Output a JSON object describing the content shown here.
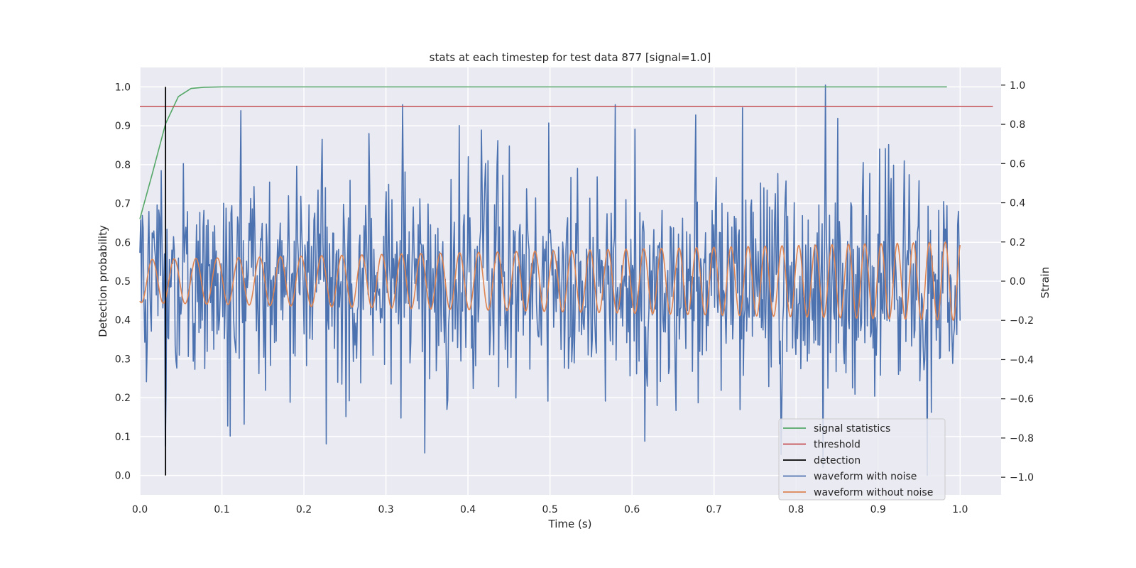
{
  "chart_data": {
    "type": "line",
    "title": "stats at each timestep for test data 877 [signal=1.0]",
    "xlabel": "Time (s)",
    "ylabel": "Detection probability",
    "y2label": "Strain",
    "xlim": [
      0.0,
      1.05
    ],
    "ylim": [
      -0.05,
      1.05
    ],
    "y2lim": [
      -1.09,
      1.09
    ],
    "xticks": [
      "0.0",
      "0.1",
      "0.2",
      "0.3",
      "0.4",
      "0.5",
      "0.6",
      "0.7",
      "0.8",
      "0.9",
      "1.0"
    ],
    "yticks": [
      "0.0",
      "0.1",
      "0.2",
      "0.3",
      "0.4",
      "0.5",
      "0.6",
      "0.7",
      "0.8",
      "0.9",
      "1.0"
    ],
    "y2ticks": [
      "−1.0",
      "−0.8",
      "−0.6",
      "−0.4",
      "−0.2",
      "0.0",
      "0.2",
      "0.4",
      "0.6",
      "0.8",
      "1.0"
    ],
    "grid": true,
    "legend_position": "lower-right",
    "colors": {
      "background": "#eaeaf2",
      "grid": "#ffffff",
      "signal_statistics": "#55a868",
      "threshold": "#c44e52",
      "detection": "#000000",
      "waveform_with_noise": "#4c72b0",
      "waveform_without_noise": "#dd8452"
    },
    "series": [
      {
        "name": "signal statistics",
        "axis": "left",
        "x": [
          0.0,
          0.0156,
          0.0313,
          0.0469,
          0.0625,
          0.0781,
          0.1,
          0.2,
          0.4,
          0.6,
          0.8,
          0.984
        ],
        "y": [
          0.66,
          0.78,
          0.905,
          0.975,
          0.996,
          0.999,
          1.0,
          1.0,
          1.0,
          1.0,
          1.0,
          1.0
        ]
      },
      {
        "name": "threshold",
        "axis": "left",
        "x": [
          0.0,
          1.04
        ],
        "y": [
          0.95,
          0.95
        ]
      },
      {
        "name": "detection",
        "axis": "left",
        "x": [
          0.0313,
          0.0313
        ],
        "y": [
          0.0,
          1.0
        ]
      },
      {
        "name": "waveform with noise",
        "axis": "right",
        "sample_count": 1000,
        "x_range": [
          0.0,
          1.0
        ],
        "approx_std": 0.3,
        "notable_points": [
          {
            "x": 0.031,
            "y": -0.84
          },
          {
            "x": 0.11,
            "y": -0.79
          },
          {
            "x": 0.123,
            "y": 0.87
          },
          {
            "x": 0.227,
            "y": -0.83
          },
          {
            "x": 0.32,
            "y": 0.9
          },
          {
            "x": 0.58,
            "y": 0.9
          },
          {
            "x": 0.836,
            "y": 1.0
          },
          {
            "x": 0.96,
            "y": -0.99
          }
        ]
      },
      {
        "name": "waveform without noise",
        "axis": "right",
        "x_range": [
          0.0,
          1.0
        ],
        "amplitude_start": 0.11,
        "amplitude_end": 0.2,
        "frequency_start_hz": 37,
        "frequency_end_hz": 52
      }
    ]
  }
}
